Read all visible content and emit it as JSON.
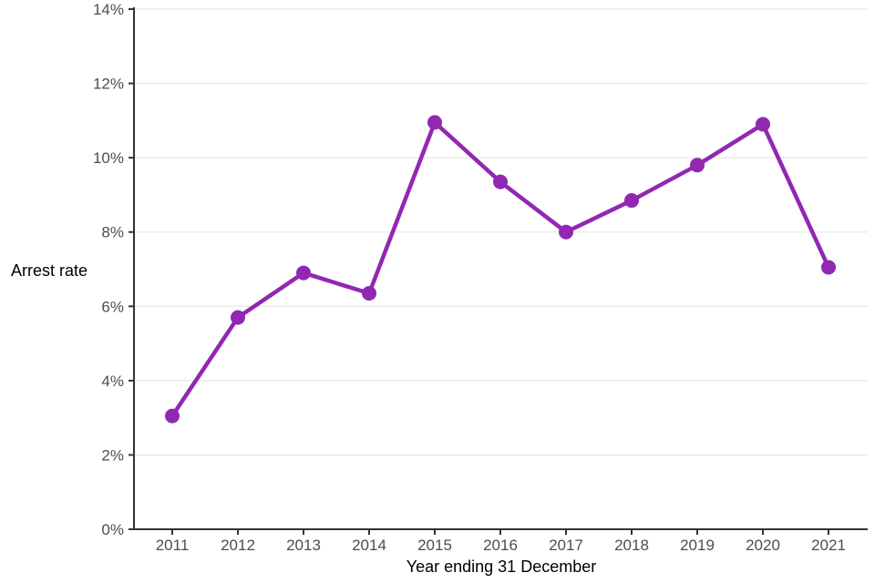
{
  "chart_data": {
    "type": "line",
    "title": "",
    "xlabel": "Year ending 31 December",
    "ylabel": "Arrest rate",
    "categories": [
      "2011",
      "2012",
      "2013",
      "2014",
      "2015",
      "2016",
      "2017",
      "2018",
      "2019",
      "2020",
      "2021"
    ],
    "series": [
      {
        "name": "Arrest rate",
        "values": [
          3.05,
          5.7,
          6.9,
          6.35,
          10.95,
          9.35,
          8.0,
          8.85,
          9.8,
          10.9,
          7.05
        ]
      }
    ],
    "ylim": [
      0,
      14
    ],
    "ytick_step": 2,
    "ytick_suffix": "%",
    "ytick_labels": [
      "0%",
      "2%",
      "4%",
      "6%",
      "8%",
      "10%",
      "12%",
      "14%"
    ],
    "grid": "horizontal",
    "legend": "none"
  },
  "colors": {
    "line": "#9128b2",
    "marker": "#9128b2",
    "grid": "#e8e8e8",
    "axis": "#333333",
    "tick_label": "#4d4d4d",
    "axis_title": "#000000",
    "background": "#ffffff"
  }
}
